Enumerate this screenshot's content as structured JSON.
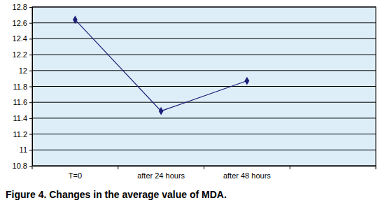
{
  "chart_data": {
    "type": "line",
    "title": "Figure 4. Changes in the average value of MDA.",
    "categories": [
      "T=0",
      "after 24 hours",
      "after 48 hours",
      null
    ],
    "values": [
      12.64,
      11.49,
      11.87,
      null
    ],
    "color": "#1f1f7a",
    "marker": "diamond",
    "ylim": [
      10.8,
      12.8
    ],
    "yticks": [
      10.8,
      11,
      11.2,
      11.4,
      11.6,
      11.8,
      12,
      12.2,
      12.4,
      12.6,
      12.8
    ],
    "grid": true
  }
}
